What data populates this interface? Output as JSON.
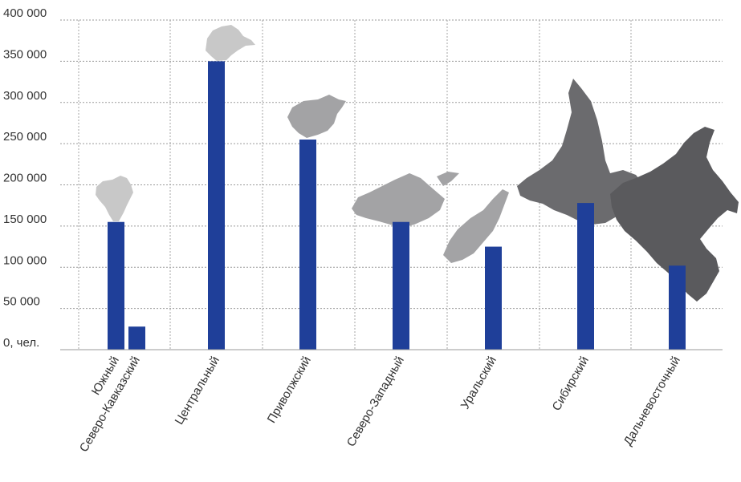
{
  "chart_data": {
    "type": "bar",
    "title": "",
    "xlabel": "",
    "ylabel": "",
    "ylim": [
      0,
      400000
    ],
    "grid": true,
    "y_ticks": [
      {
        "value": 0,
        "label": "0, чел."
      },
      {
        "value": 50000,
        "label": "50 000"
      },
      {
        "value": 100000,
        "label": "100 000"
      },
      {
        "value": 150000,
        "label": "150 000"
      },
      {
        "value": 200000,
        "label": "200 000"
      },
      {
        "value": 250000,
        "label": "250 000"
      },
      {
        "value": 300000,
        "label": "300 000"
      },
      {
        "value": 350000,
        "label": "350 000"
      },
      {
        "value": 400000,
        "label": "400 000"
      }
    ],
    "categories": [
      "Южный",
      "Северо-Кавказский",
      "Центральный",
      "Приволжский",
      "Северо-Западный",
      "Уральский",
      "Сибирский",
      "Дальневосточный"
    ],
    "values": [
      155000,
      28000,
      350000,
      255000,
      155000,
      125000,
      178000,
      102000
    ],
    "bar_color": "#1f3f99",
    "map_colors": {
      "light": "#c8c8c8",
      "medium": "#a3a3a5",
      "dark": "#6b6b6e",
      "darker": "#5a5a5d"
    }
  }
}
